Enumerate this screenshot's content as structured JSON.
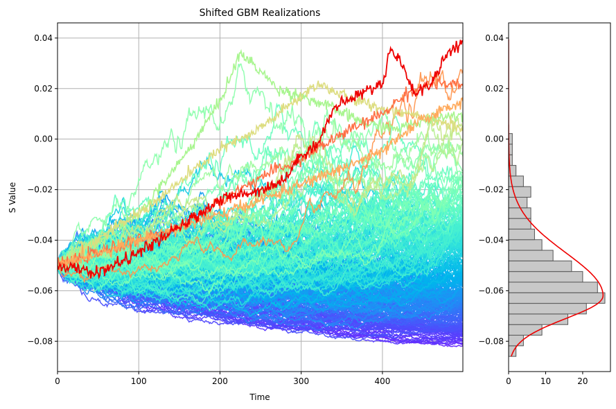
{
  "chart_data": [
    {
      "type": "line",
      "title": "Shifted GBM Realizations",
      "xlabel": "Time",
      "ylabel": "S Value",
      "xlim": [
        0,
        499
      ],
      "ylim": [
        -0.092,
        0.046
      ],
      "grid": true,
      "legend": "none",
      "colormap": "rainbow",
      "n_paths": 300,
      "n_steps": 500,
      "start_value": -0.05,
      "xticks": [
        0,
        100,
        200,
        300,
        400
      ],
      "xtick_labels": [
        "0",
        "100",
        "200",
        "300",
        "400"
      ],
      "yticks": [
        -0.08,
        -0.06,
        -0.04,
        -0.02,
        0.0,
        0.02,
        0.04
      ],
      "ytick_labels": [
        "−0.08",
        "−0.06",
        "−0.04",
        "−0.02",
        "0.00",
        "0.02",
        "0.04"
      ],
      "final_value_range": [
        -0.085,
        0.039
      ],
      "highlight_path": {
        "color": "#ee0000",
        "points": [
          [
            0,
            -0.05
          ],
          [
            50,
            -0.053
          ],
          [
            100,
            -0.045
          ],
          [
            150,
            -0.035
          ],
          [
            200,
            -0.024
          ],
          [
            250,
            -0.02
          ],
          [
            280,
            -0.016
          ],
          [
            300,
            -0.006
          ],
          [
            320,
            -0.002
          ],
          [
            340,
            0.012
          ],
          [
            360,
            0.016
          ],
          [
            380,
            0.019
          ],
          [
            400,
            0.022
          ],
          [
            410,
            0.036
          ],
          [
            420,
            0.032
          ],
          [
            440,
            0.018
          ],
          [
            460,
            0.022
          ],
          [
            480,
            0.034
          ],
          [
            499,
            0.039
          ]
        ]
      },
      "sample_paths": [
        {
          "color": "#a8f58f",
          "points": [
            [
              0,
              -0.05
            ],
            [
              100,
              -0.03
            ],
            [
              160,
              -0.005
            ],
            [
              200,
              0.015
            ],
            [
              225,
              0.034
            ],
            [
              250,
              0.027
            ],
            [
              270,
              0.02
            ],
            [
              300,
              0.017
            ],
            [
              340,
              0.012
            ],
            [
              380,
              0.006
            ],
            [
              420,
              0.004
            ],
            [
              460,
              0.008
            ],
            [
              499,
              0.01
            ]
          ]
        },
        {
          "color": "#dddd80",
          "points": [
            [
              0,
              -0.05
            ],
            [
              120,
              -0.025
            ],
            [
              200,
              -0.004
            ],
            [
              240,
              0.002
            ],
            [
              280,
              0.012
            ],
            [
              320,
              0.022
            ],
            [
              360,
              0.016
            ],
            [
              400,
              0.012
            ],
            [
              440,
              0.01
            ],
            [
              480,
              0.006
            ],
            [
              499,
              0.004
            ]
          ]
        },
        {
          "color": "#ff6f44",
          "points": [
            [
              0,
              -0.05
            ],
            [
              150,
              -0.035
            ],
            [
              250,
              -0.015
            ],
            [
              300,
              -0.008
            ],
            [
              350,
              0.002
            ],
            [
              400,
              0.01
            ],
            [
              430,
              0.018
            ],
            [
              460,
              0.022
            ],
            [
              499,
              0.021
            ]
          ]
        },
        {
          "color": "#ffaa5c",
          "points": [
            [
              0,
              -0.05
            ],
            [
              200,
              -0.03
            ],
            [
              300,
              -0.018
            ],
            [
              400,
              -0.005
            ],
            [
              450,
              0.008
            ],
            [
              499,
              0.015
            ]
          ]
        }
      ]
    },
    {
      "type": "histogram",
      "orientation": "horizontal",
      "xlim": [
        0,
        27.5
      ],
      "ylim": [
        -0.092,
        0.046
      ],
      "xticks": [
        0,
        10,
        20
      ],
      "xtick_labels": [
        "0",
        "10",
        "20"
      ],
      "yticks": [
        -0.08,
        -0.06,
        -0.04,
        -0.02,
        0.0,
        0.02,
        0.04
      ],
      "ytick_labels": [
        "−0.08",
        "−0.06",
        "−0.04",
        "−0.02",
        "0.00",
        "0.02",
        "0.04"
      ],
      "bin_edges": [
        -0.086,
        -0.0818,
        -0.0776,
        -0.0734,
        -0.0692,
        -0.065,
        -0.0608,
        -0.0566,
        -0.0524,
        -0.0482,
        -0.044,
        -0.0398,
        -0.0356,
        -0.0314,
        -0.0272,
        -0.023,
        -0.0188,
        -0.0146,
        -0.0104,
        -0.0062,
        -0.002,
        0.0022
      ],
      "counts": [
        2,
        4,
        9,
        16,
        21,
        26,
        24,
        20,
        17,
        12,
        9,
        7,
        6,
        6,
        5,
        6,
        4,
        2,
        1,
        1,
        1
      ],
      "bar_color": "#c8c8c8",
      "edge_color": "#555555",
      "density_curve": {
        "color": "#ee0000",
        "peak_y": -0.062,
        "peak_count": 25.5
      }
    }
  ]
}
